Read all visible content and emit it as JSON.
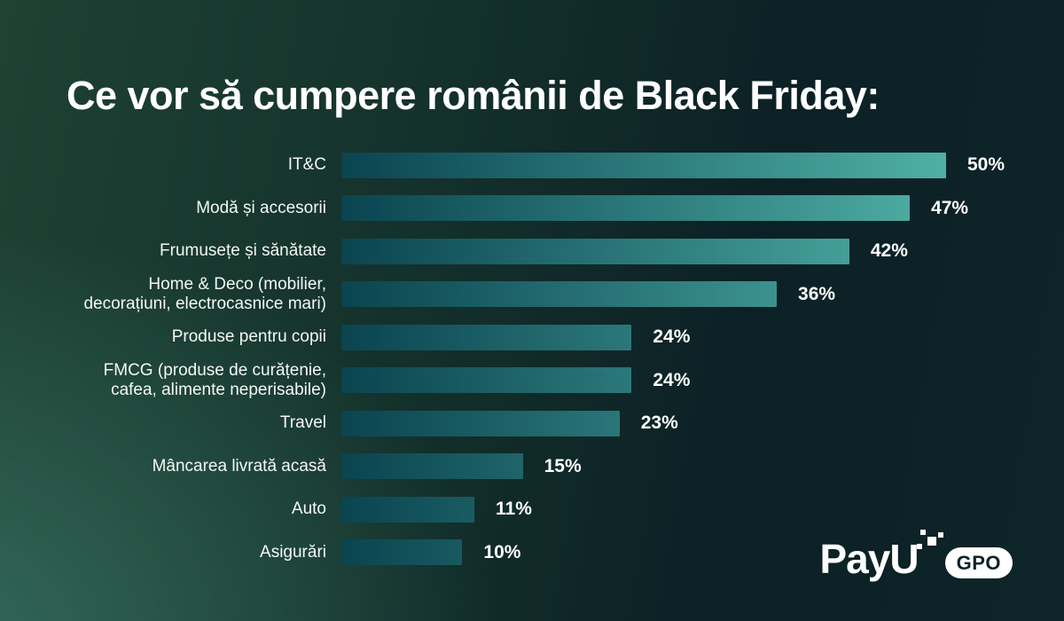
{
  "title": "Ce vor să cumpere românii de Black Friday:",
  "brand": {
    "name_pay": "Pay",
    "name_u": "U",
    "badge": "GPO"
  },
  "colors": {
    "background_dark": "#0d2428",
    "background_green_glow": "#366e5e",
    "bar_gradient_start": "#0a4450",
    "bar_gradient_end": "#4fb0a6",
    "text": "#ffffff"
  },
  "chart_data": {
    "type": "bar",
    "orientation": "horizontal",
    "title": "Ce vor să cumpere românii de Black Friday:",
    "categories": [
      "IT&C",
      "Modă și accesorii",
      "Frumusețe și sănătate",
      "Home & Deco (mobilier,\ndecorațiuni, electrocasnice mari)",
      "Produse pentru copii",
      "FMCG (produse de curățenie,\ncafea, alimente neperisabile)",
      "Travel",
      "Mâncarea livrată acasă",
      "Auto",
      "Asigurări"
    ],
    "values": [
      50,
      47,
      42,
      36,
      24,
      24,
      23,
      15,
      11,
      10
    ],
    "value_suffix": "%",
    "xlim": [
      0,
      50
    ],
    "grid": false,
    "legend": false,
    "bar_labels": [
      "50%",
      "47%",
      "42%",
      "36%",
      "24%",
      "24%",
      "23%",
      "15%",
      "11%",
      "10%"
    ]
  }
}
